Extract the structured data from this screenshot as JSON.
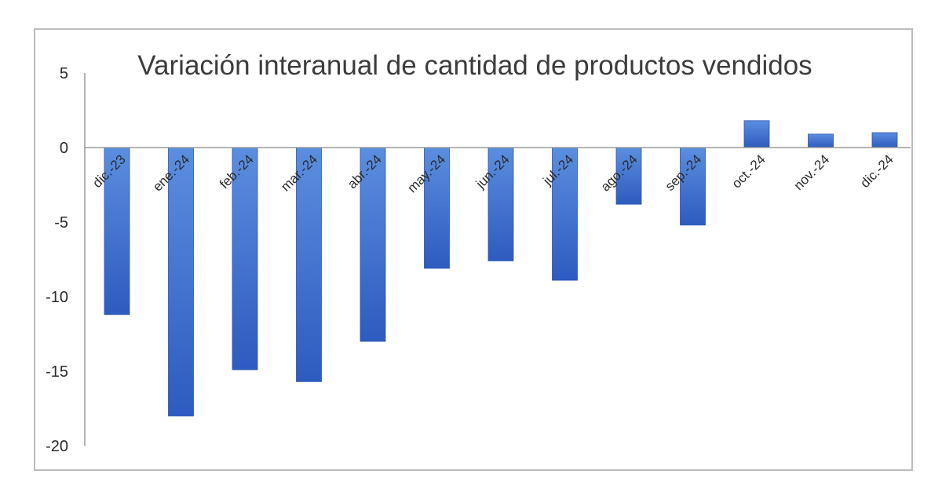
{
  "chart_data": {
    "type": "bar",
    "title": "Variación interanual de cantidad de productos vendidos",
    "xlabel": "",
    "ylabel": "",
    "categories": [
      "dic.-23",
      "ene.-24",
      "feb.-24",
      "mar.-24",
      "abr.-24",
      "may.-24",
      "jun.-24",
      "jul.-24",
      "ago.-24",
      "sep.-24",
      "oct.-24",
      "nov.-24",
      "dic.-24"
    ],
    "values": [
      -11.2,
      -18,
      -14.9,
      -15.7,
      -13,
      -8.1,
      -7.6,
      -8.9,
      -3.8,
      -5.2,
      1.8,
      0.9,
      1.0
    ],
    "ylim": [
      -20,
      5
    ],
    "yticks": [
      5,
      0,
      -5,
      -10,
      -15,
      -20
    ],
    "grid": false,
    "legend": "none",
    "colors": {
      "bar_top": "#5b8ee0",
      "bar_bottom": "#2d5bbf",
      "axis": "#9a9a9a",
      "border": "#bdbdbd",
      "text": "#2b2b2b"
    }
  }
}
